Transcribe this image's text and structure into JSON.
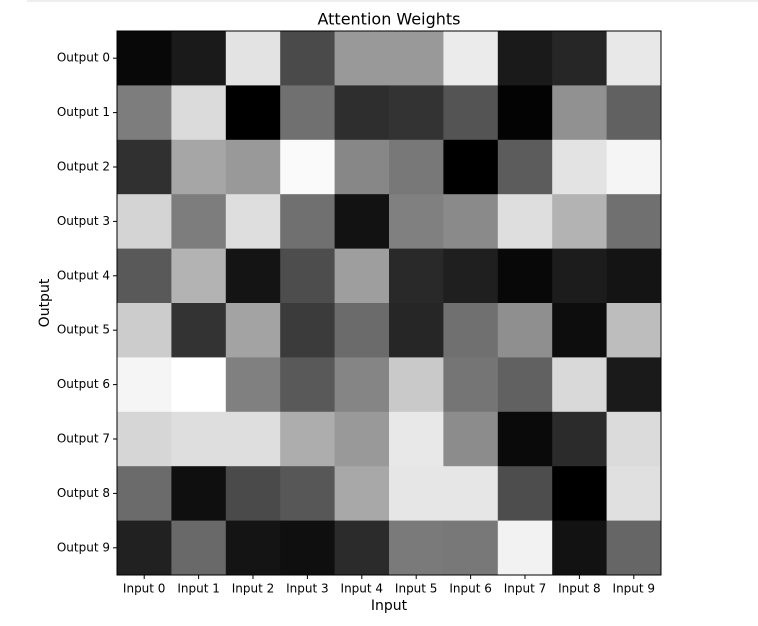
{
  "chart_data": {
    "type": "heatmap",
    "title": "Attention Weights",
    "x_label": "Input",
    "y_label": "Output",
    "x_categories": [
      "Input 0",
      "Input 1",
      "Input 2",
      "Input 3",
      "Input 4",
      "Input 5",
      "Input 6",
      "Input 7",
      "Input 8",
      "Input 9"
    ],
    "y_categories": [
      "Output 0",
      "Output 1",
      "Output 2",
      "Output 3",
      "Output 4",
      "Output 5",
      "Output 6",
      "Output 7",
      "Output 8",
      "Output 9"
    ],
    "colormap": "gray",
    "zlim": [
      0,
      1
    ],
    "values": [
      [
        0.03,
        0.1,
        0.89,
        0.29,
        0.6,
        0.6,
        0.92,
        0.1,
        0.15,
        0.91
      ],
      [
        0.49,
        0.86,
        0.0,
        0.44,
        0.18,
        0.2,
        0.33,
        0.01,
        0.57,
        0.38
      ],
      [
        0.19,
        0.65,
        0.6,
        0.98,
        0.53,
        0.47,
        0.0,
        0.36,
        0.89,
        0.96
      ],
      [
        0.83,
        0.49,
        0.87,
        0.44,
        0.07,
        0.5,
        0.54,
        0.87,
        0.7,
        0.44
      ],
      [
        0.35,
        0.7,
        0.08,
        0.3,
        0.62,
        0.16,
        0.12,
        0.03,
        0.11,
        0.08
      ],
      [
        0.8,
        0.2,
        0.64,
        0.23,
        0.42,
        0.15,
        0.44,
        0.56,
        0.05,
        0.74
      ],
      [
        0.96,
        1.0,
        0.5,
        0.35,
        0.52,
        0.79,
        0.46,
        0.38,
        0.85,
        0.1
      ],
      [
        0.84,
        0.87,
        0.87,
        0.68,
        0.6,
        0.91,
        0.55,
        0.04,
        0.17,
        0.86
      ],
      [
        0.42,
        0.06,
        0.29,
        0.34,
        0.66,
        0.9,
        0.9,
        0.3,
        0.0,
        0.88
      ],
      [
        0.13,
        0.41,
        0.08,
        0.06,
        0.17,
        0.48,
        0.47,
        0.95,
        0.07,
        0.4
      ]
    ]
  }
}
